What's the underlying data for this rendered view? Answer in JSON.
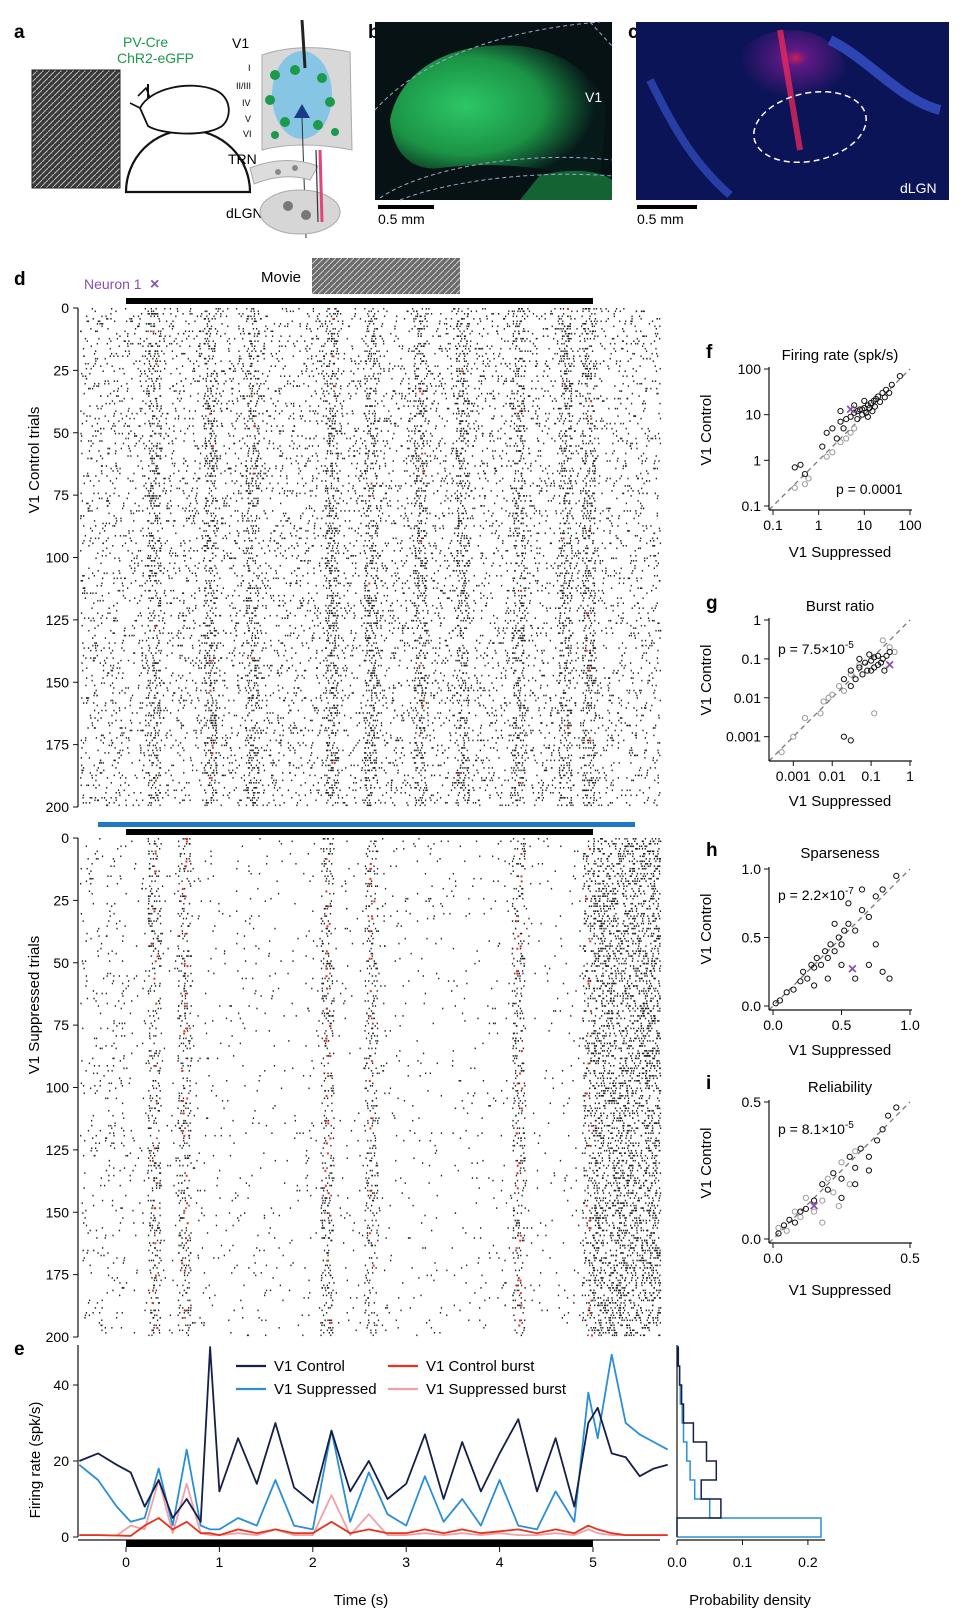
{
  "panel_labels": {
    "a": "a",
    "b": "b",
    "c": "c",
    "d": "d",
    "e": "e",
    "f": "f",
    "g": "g",
    "h": "h",
    "i": "i"
  },
  "panel_a": {
    "construct_line1": "PV-Cre",
    "construct_line2": "ChR2-eGFP",
    "area_v1": "V1",
    "layers": [
      "I",
      "II/III",
      "IV",
      "V",
      "VI"
    ],
    "area_trn": "TRN",
    "area_dlgn": "dLGN",
    "colors": {
      "green": "#1a9a4a",
      "blue_light": "#7ec3e6",
      "pink": "#e0457b"
    }
  },
  "panel_b": {
    "region_label": "V1",
    "scalebar": "0.5 mm"
  },
  "panel_c": {
    "region_label": "dLGN",
    "scalebar": "0.5 mm"
  },
  "panel_d": {
    "neuron_label": "Neuron 1",
    "neuron_marker": "×",
    "movie_label": "Movie",
    "control_ylabel": "V1 Control trials",
    "suppressed_ylabel": "V1 Suppressed trials",
    "trial_ticks": [
      0,
      25,
      50,
      75,
      100,
      125,
      150,
      175,
      200
    ],
    "colors": {
      "spike": "#222222",
      "burst": "#e8321e",
      "opto_bar": "#1e78c8",
      "movie_bar": "#000000"
    }
  },
  "panel_e": {
    "ylabel": "Firing rate (spk/s)",
    "xlabel": "Time (s)",
    "hist_xlabel": "Probability density",
    "yticks": [
      0,
      20,
      40
    ],
    "xticks": [
      0,
      1,
      2,
      3,
      4,
      5
    ],
    "hist_xticks": [
      "0.0",
      "0.1",
      "0.2"
    ],
    "legend": [
      "V1 Control",
      "V1 Suppressed",
      "V1 Control burst",
      "V1 Suppressed burst"
    ],
    "colors": {
      "control": "#14204a",
      "suppressed": "#2a8fd6",
      "control_burst": "#e8321e",
      "suppressed_burst": "#f2a0a6"
    }
  },
  "chart_data": [
    {
      "type": "line",
      "panel": "e",
      "xlabel": "Time (s)",
      "ylabel": "Firing rate (spk/s)",
      "xlim": [
        -0.5,
        5.8
      ],
      "ylim": [
        0,
        50
      ],
      "x": [
        -0.5,
        -0.3,
        -0.1,
        0.05,
        0.2,
        0.35,
        0.5,
        0.65,
        0.8,
        0.9,
        1.0,
        1.2,
        1.4,
        1.6,
        1.8,
        2.0,
        2.2,
        2.4,
        2.6,
        2.8,
        3.0,
        3.2,
        3.4,
        3.6,
        3.8,
        4.0,
        4.2,
        4.4,
        4.6,
        4.8,
        4.95,
        5.05,
        5.2,
        5.35,
        5.5,
        5.65,
        5.8
      ],
      "series": [
        {
          "name": "V1 Control",
          "values": [
            20,
            22,
            19,
            17,
            8,
            15,
            5,
            10,
            4,
            50,
            12,
            26,
            14,
            30,
            13,
            9,
            28,
            12,
            20,
            10,
            14,
            27,
            10,
            25,
            12,
            22,
            31,
            12,
            26,
            8,
            30,
            34,
            22,
            21,
            16,
            18,
            19
          ]
        },
        {
          "name": "V1 Suppressed",
          "values": [
            19,
            15,
            8,
            4,
            5,
            18,
            3,
            23,
            3,
            2,
            2,
            5,
            3,
            15,
            3,
            2,
            28,
            4,
            17,
            6,
            3,
            16,
            4,
            10,
            3,
            15,
            3,
            2,
            12,
            4,
            38,
            26,
            48,
            30,
            27,
            25,
            23
          ]
        },
        {
          "name": "V1 Control burst",
          "values": [
            0.5,
            0.5,
            0.4,
            0.3,
            3,
            5,
            2,
            4,
            1,
            1,
            0.5,
            2,
            1,
            2,
            1,
            1,
            4,
            1,
            2,
            1,
            1,
            2,
            1,
            2,
            1,
            1.5,
            2,
            1,
            2,
            1,
            3,
            2,
            1,
            0.5,
            0.5,
            0.5,
            0.5
          ]
        },
        {
          "name": "V1 Suppressed burst",
          "values": [
            0.5,
            0.5,
            0.4,
            3,
            2,
            15,
            1,
            14,
            1,
            0.5,
            0.5,
            1,
            0.5,
            2,
            0.5,
            0.5,
            11,
            0.5,
            6,
            0.5,
            0.5,
            1,
            0.5,
            1,
            0.5,
            1,
            0.5,
            0.5,
            1,
            0.5,
            2,
            1,
            0.5,
            0.5,
            0.5,
            0.5,
            0.5
          ]
        }
      ]
    },
    {
      "type": "bar",
      "panel": "e-histogram",
      "xlabel": "Probability density",
      "orientation": "horizontal",
      "bin_edges": [
        0,
        5,
        10,
        15,
        20,
        25,
        30,
        35,
        40,
        45,
        50
      ],
      "series": [
        {
          "name": "V1 Control",
          "values": [
            0.0,
            0.067,
            0.037,
            0.06,
            0.045,
            0.025,
            0.01,
            0.007,
            0.004,
            0.002
          ]
        },
        {
          "name": "V1 Suppressed",
          "values": [
            0.22,
            0.05,
            0.027,
            0.02,
            0.015,
            0.01,
            0.008,
            0.005,
            0.004,
            0.002
          ]
        }
      ]
    },
    {
      "type": "scatter",
      "panel": "f",
      "title": "Firing rate (spk/s)",
      "xlabel": "V1 Suppressed",
      "ylabel": "V1 Control",
      "scale": "log",
      "xlim": [
        0.1,
        100
      ],
      "ylim": [
        0.1,
        100
      ],
      "xticks": [
        "0.1",
        "1",
        "10",
        "100"
      ],
      "yticks": [
        "0.1",
        "1",
        "10",
        "100"
      ],
      "annotation": "p = 0.0001",
      "highlight": {
        "x": 5,
        "y": 13
      },
      "points_dark": [
        [
          0.3,
          0.7
        ],
        [
          0.4,
          0.8
        ],
        [
          0.5,
          0.5
        ],
        [
          1.2,
          2
        ],
        [
          2,
          5
        ],
        [
          3,
          7
        ],
        [
          3.5,
          5
        ],
        [
          4,
          8
        ],
        [
          5,
          9
        ],
        [
          6,
          11
        ],
        [
          7,
          12
        ],
        [
          8,
          13
        ],
        [
          9,
          10
        ],
        [
          10,
          14
        ],
        [
          12,
          16
        ],
        [
          14,
          18
        ],
        [
          16,
          20
        ],
        [
          18,
          22
        ],
        [
          20,
          25
        ],
        [
          25,
          30
        ],
        [
          30,
          35
        ],
        [
          40,
          45
        ],
        [
          60,
          70
        ],
        [
          2.5,
          3
        ],
        [
          1.5,
          4
        ],
        [
          3,
          12
        ],
        [
          6,
          16
        ],
        [
          10,
          20
        ],
        [
          15,
          12
        ],
        [
          12,
          9
        ],
        [
          9,
          13
        ],
        [
          7,
          8
        ],
        [
          11,
          11
        ],
        [
          13,
          14
        ],
        [
          17,
          15
        ],
        [
          22,
          19
        ],
        [
          28,
          24
        ],
        [
          35,
          30
        ]
      ],
      "points_gray": [
        [
          0.3,
          0.25
        ],
        [
          0.5,
          0.3
        ],
        [
          0.6,
          0.4
        ],
        [
          1.5,
          1.2
        ],
        [
          2,
          1.5
        ],
        [
          3,
          2.5
        ],
        [
          4,
          3
        ],
        [
          5,
          4
        ],
        [
          6,
          5
        ]
      ]
    },
    {
      "type": "scatter",
      "panel": "g",
      "title": "Burst ratio",
      "xlabel": "V1 Suppressed",
      "ylabel": "V1 Control",
      "scale": "log",
      "xlim": [
        0.0003,
        1
      ],
      "ylim": [
        0.0003,
        1
      ],
      "xticks": [
        "0.001",
        "0.01",
        "0.1",
        "1"
      ],
      "yticks": [
        "0.001",
        "0.01",
        "0.1",
        "1"
      ],
      "annotation": "p = 7.5×10<sup>-5</sup>",
      "annotation_base": "p = 7.5×10",
      "annotation_exp": "-5",
      "highlight": {
        "x": 0.3,
        "y": 0.07
      },
      "points_dark": [
        [
          0.02,
          0.03
        ],
        [
          0.03,
          0.05
        ],
        [
          0.05,
          0.06
        ],
        [
          0.07,
          0.08
        ],
        [
          0.1,
          0.09
        ],
        [
          0.12,
          0.11
        ],
        [
          0.15,
          0.07
        ],
        [
          0.2,
          0.1
        ],
        [
          0.25,
          0.12
        ],
        [
          0.08,
          0.05
        ],
        [
          0.06,
          0.04
        ],
        [
          0.04,
          0.03
        ],
        [
          0.03,
          0.02
        ],
        [
          0.1,
          0.05
        ],
        [
          0.15,
          0.12
        ],
        [
          0.3,
          0.15
        ],
        [
          0.05,
          0.1
        ],
        [
          0.02,
          0.001
        ],
        [
          0.03,
          0.0008
        ],
        [
          0.12,
          0.06
        ],
        [
          0.18,
          0.08
        ],
        [
          0.09,
          0.13
        ],
        [
          0.22,
          0.05
        ]
      ],
      "points_gray": [
        [
          0.0005,
          0.0004
        ],
        [
          0.001,
          0.001
        ],
        [
          0.002,
          0.003
        ],
        [
          0.005,
          0.004
        ],
        [
          0.008,
          0.01
        ],
        [
          0.01,
          0.012
        ],
        [
          0.015,
          0.02
        ],
        [
          0.02,
          0.015
        ],
        [
          0.03,
          0.04
        ],
        [
          0.05,
          0.07
        ],
        [
          0.2,
          0.3
        ],
        [
          0.3,
          0.2
        ],
        [
          0.4,
          0.15
        ],
        [
          0.006,
          0.008
        ],
        [
          0.12,
          0.004
        ]
      ]
    },
    {
      "type": "scatter",
      "panel": "h",
      "title": "Sparseness",
      "xlabel": "V1 Suppressed",
      "ylabel": "V1 Control",
      "xlim": [
        0,
        1
      ],
      "ylim": [
        0,
        1
      ],
      "xticks": [
        "0.0",
        "0.5",
        "1.0"
      ],
      "yticks": [
        "0.0",
        "0.5",
        "1.0"
      ],
      "annotation_base": "p = 2.2×10",
      "annotation_exp": "-7",
      "highlight": {
        "x": 0.58,
        "y": 0.27
      },
      "points_dark": [
        [
          0.02,
          0.02
        ],
        [
          0.05,
          0.04
        ],
        [
          0.1,
          0.1
        ],
        [
          0.15,
          0.12
        ],
        [
          0.2,
          0.18
        ],
        [
          0.22,
          0.25
        ],
        [
          0.25,
          0.2
        ],
        [
          0.28,
          0.3
        ],
        [
          0.3,
          0.28
        ],
        [
          0.32,
          0.35
        ],
        [
          0.35,
          0.3
        ],
        [
          0.38,
          0.4
        ],
        [
          0.4,
          0.35
        ],
        [
          0.42,
          0.45
        ],
        [
          0.45,
          0.4
        ],
        [
          0.48,
          0.5
        ],
        [
          0.5,
          0.45
        ],
        [
          0.52,
          0.55
        ],
        [
          0.55,
          0.6
        ],
        [
          0.6,
          0.55
        ],
        [
          0.65,
          0.7
        ],
        [
          0.7,
          0.65
        ],
        [
          0.75,
          0.8
        ],
        [
          0.8,
          0.85
        ],
        [
          0.9,
          0.95
        ],
        [
          0.6,
          0.2
        ],
        [
          0.7,
          0.3
        ],
        [
          0.8,
          0.25
        ],
        [
          0.85,
          0.2
        ],
        [
          0.75,
          0.45
        ],
        [
          0.5,
          0.3
        ],
        [
          0.4,
          0.2
        ],
        [
          0.3,
          0.15
        ],
        [
          0.55,
          0.75
        ],
        [
          0.65,
          0.85
        ],
        [
          0.45,
          0.6
        ]
      ],
      "points_gray": []
    },
    {
      "type": "scatter",
      "panel": "i",
      "title": "Reliability",
      "xlabel": "V1 Suppressed",
      "ylabel": "V1 Control",
      "xlim": [
        0,
        0.5
      ],
      "ylim": [
        0,
        0.5
      ],
      "xticks": [
        "0.0",
        "0.5"
      ],
      "yticks": [
        "0.0",
        "0.5"
      ],
      "annotation_base": "p = 8.1×10",
      "annotation_exp": "-5",
      "highlight": {
        "x": 0.15,
        "y": 0.12
      },
      "points_dark": [
        [
          0.02,
          0.02
        ],
        [
          0.04,
          0.05
        ],
        [
          0.06,
          0.07
        ],
        [
          0.08,
          0.06
        ],
        [
          0.1,
          0.1
        ],
        [
          0.12,
          0.11
        ],
        [
          0.15,
          0.14
        ],
        [
          0.18,
          0.2
        ],
        [
          0.2,
          0.18
        ],
        [
          0.22,
          0.24
        ],
        [
          0.25,
          0.22
        ],
        [
          0.28,
          0.3
        ],
        [
          0.3,
          0.26
        ],
        [
          0.32,
          0.33
        ],
        [
          0.35,
          0.3
        ],
        [
          0.38,
          0.36
        ],
        [
          0.4,
          0.4
        ],
        [
          0.42,
          0.45
        ],
        [
          0.45,
          0.48
        ],
        [
          0.3,
          0.2
        ],
        [
          0.25,
          0.15
        ],
        [
          0.35,
          0.25
        ]
      ],
      "points_gray": [
        [
          0.02,
          0.04
        ],
        [
          0.05,
          0.03
        ],
        [
          0.08,
          0.1
        ],
        [
          0.1,
          0.08
        ],
        [
          0.12,
          0.15
        ],
        [
          0.15,
          0.1
        ],
        [
          0.18,
          0.14
        ],
        [
          0.2,
          0.22
        ],
        [
          0.22,
          0.17
        ],
        [
          0.25,
          0.28
        ],
        [
          0.28,
          0.2
        ],
        [
          0.3,
          0.32
        ],
        [
          0.18,
          0.06
        ],
        [
          0.24,
          0.12
        ]
      ]
    }
  ],
  "scatter_colors": {
    "dark": "#111111",
    "gray": "#9a9a9a",
    "highlight": "#8a4fb0",
    "diag": "#777777"
  }
}
